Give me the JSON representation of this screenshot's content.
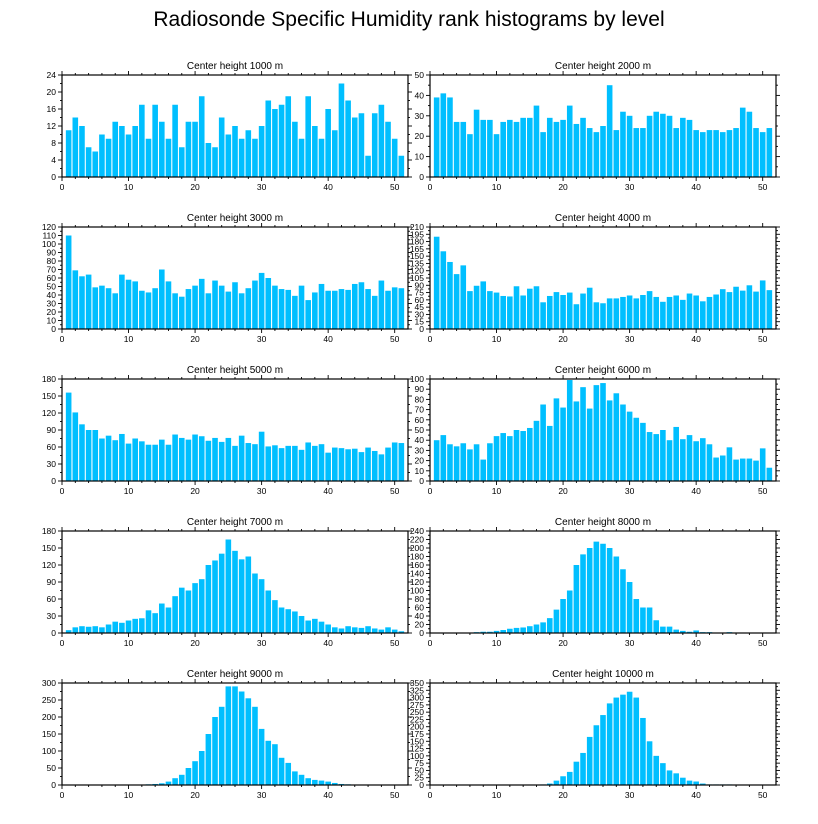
{
  "figure_title": "Radiosonde Specific Humidity rank histograms by level",
  "colors": {
    "bar": "#00bfff",
    "axis": "#000000",
    "background": "#ffffff"
  },
  "chart_data": [
    {
      "type": "bar",
      "title": "Center height 1000 m",
      "xlabel": "",
      "ylabel": "",
      "xlim": [
        0,
        52
      ],
      "ylim": [
        0,
        24
      ],
      "xticks": [
        0,
        10,
        20,
        30,
        40,
        50
      ],
      "yticks": [
        0,
        4,
        8,
        12,
        16,
        20,
        24
      ],
      "x": [
        1,
        2,
        3,
        4,
        5,
        6,
        7,
        8,
        9,
        10,
        11,
        12,
        13,
        14,
        15,
        16,
        17,
        18,
        19,
        20,
        21,
        22,
        23,
        24,
        25,
        26,
        27,
        28,
        29,
        30,
        31,
        32,
        33,
        34,
        35,
        36,
        37,
        38,
        39,
        40,
        41,
        42,
        43,
        44,
        45,
        46,
        47,
        48,
        49,
        50,
        51
      ],
      "values": [
        11,
        14,
        12,
        7,
        6,
        10,
        9,
        13,
        12,
        10,
        12,
        17,
        9,
        17,
        13,
        9,
        17,
        7,
        13,
        13,
        19,
        8,
        7,
        14,
        10,
        12,
        9,
        11,
        9,
        12,
        18,
        16,
        17,
        19,
        13,
        9,
        19,
        12,
        9,
        16,
        11,
        22,
        18,
        14,
        15,
        5,
        15,
        17,
        13,
        9,
        5
      ]
    },
    {
      "type": "bar",
      "title": "Center height 2000 m",
      "xlabel": "",
      "ylabel": "",
      "xlim": [
        0,
        52
      ],
      "ylim": [
        0,
        50
      ],
      "xticks": [
        0,
        10,
        20,
        30,
        40,
        50
      ],
      "yticks": [
        0,
        10,
        20,
        30,
        40,
        50
      ],
      "x": [
        1,
        2,
        3,
        4,
        5,
        6,
        7,
        8,
        9,
        10,
        11,
        12,
        13,
        14,
        15,
        16,
        17,
        18,
        19,
        20,
        21,
        22,
        23,
        24,
        25,
        26,
        27,
        28,
        29,
        30,
        31,
        32,
        33,
        34,
        35,
        36,
        37,
        38,
        39,
        40,
        41,
        42,
        43,
        44,
        45,
        46,
        47,
        48,
        49,
        50,
        51
      ],
      "values": [
        39,
        41,
        39,
        27,
        27,
        21,
        33,
        28,
        28,
        21,
        27,
        28,
        27,
        29,
        29,
        35,
        22,
        29,
        27,
        28,
        35,
        26,
        29,
        24,
        22,
        25,
        45,
        23,
        32,
        30,
        24,
        24,
        30,
        32,
        31,
        30,
        24,
        29,
        28,
        23,
        22,
        23,
        23,
        22,
        23,
        24,
        34,
        32,
        24,
        22,
        24
      ]
    },
    {
      "type": "bar",
      "title": "Center height 3000 m",
      "xlabel": "",
      "ylabel": "",
      "xlim": [
        0,
        52
      ],
      "ylim": [
        0,
        120
      ],
      "xticks": [
        0,
        10,
        20,
        30,
        40,
        50
      ],
      "yticks": [
        0,
        10,
        20,
        30,
        40,
        50,
        60,
        70,
        80,
        90,
        100,
        110,
        120
      ],
      "x": [
        1,
        2,
        3,
        4,
        5,
        6,
        7,
        8,
        9,
        10,
        11,
        12,
        13,
        14,
        15,
        16,
        17,
        18,
        19,
        20,
        21,
        22,
        23,
        24,
        25,
        26,
        27,
        28,
        29,
        30,
        31,
        32,
        33,
        34,
        35,
        36,
        37,
        38,
        39,
        40,
        41,
        42,
        43,
        44,
        45,
        46,
        47,
        48,
        49,
        50,
        51
      ],
      "values": [
        110,
        69,
        62,
        64,
        49,
        51,
        48,
        42,
        64,
        58,
        56,
        45,
        43,
        48,
        70,
        56,
        42,
        38,
        47,
        51,
        59,
        42,
        57,
        51,
        44,
        55,
        42,
        48,
        57,
        66,
        60,
        51,
        47,
        46,
        39,
        51,
        34,
        43,
        53,
        45,
        45,
        47,
        46,
        53,
        55,
        47,
        39,
        57,
        45,
        49,
        48
      ]
    },
    {
      "type": "bar",
      "title": "Center height 4000 m",
      "xlabel": "",
      "ylabel": "",
      "xlim": [
        0,
        52
      ],
      "ylim": [
        0,
        210
      ],
      "xticks": [
        0,
        10,
        20,
        30,
        40,
        50
      ],
      "yticks": [
        0,
        15,
        30,
        45,
        60,
        75,
        90,
        105,
        120,
        135,
        150,
        165,
        180,
        195,
        210
      ],
      "x": [
        1,
        2,
        3,
        4,
        5,
        6,
        7,
        8,
        9,
        10,
        11,
        12,
        13,
        14,
        15,
        16,
        17,
        18,
        19,
        20,
        21,
        22,
        23,
        24,
        25,
        26,
        27,
        28,
        29,
        30,
        31,
        32,
        33,
        34,
        35,
        36,
        37,
        38,
        39,
        40,
        41,
        42,
        43,
        44,
        45,
        46,
        47,
        48,
        49,
        50,
        51
      ],
      "values": [
        190,
        160,
        138,
        113,
        131,
        78,
        89,
        98,
        78,
        75,
        68,
        67,
        88,
        69,
        83,
        88,
        55,
        68,
        76,
        70,
        75,
        51,
        73,
        85,
        55,
        53,
        63,
        63,
        66,
        69,
        63,
        70,
        78,
        66,
        56,
        66,
        69,
        60,
        73,
        69,
        57,
        66,
        71,
        82,
        76,
        87,
        79,
        90,
        77,
        100,
        80
      ]
    },
    {
      "type": "bar",
      "title": "Center height 5000 m",
      "xlabel": "",
      "ylabel": "",
      "xlim": [
        0,
        52
      ],
      "ylim": [
        0,
        180
      ],
      "xticks": [
        0,
        10,
        20,
        30,
        40,
        50
      ],
      "yticks": [
        0,
        30,
        60,
        90,
        120,
        150,
        180
      ],
      "x": [
        1,
        2,
        3,
        4,
        5,
        6,
        7,
        8,
        9,
        10,
        11,
        12,
        13,
        14,
        15,
        16,
        17,
        18,
        19,
        20,
        21,
        22,
        23,
        24,
        25,
        26,
        27,
        28,
        29,
        30,
        31,
        32,
        33,
        34,
        35,
        36,
        37,
        38,
        39,
        40,
        41,
        42,
        43,
        44,
        45,
        46,
        47,
        48,
        49,
        50,
        51
      ],
      "values": [
        156,
        121,
        100,
        90,
        90,
        75,
        80,
        72,
        83,
        66,
        75,
        70,
        64,
        64,
        73,
        64,
        82,
        76,
        73,
        82,
        79,
        71,
        76,
        69,
        76,
        62,
        80,
        67,
        65,
        87,
        61,
        63,
        58,
        62,
        62,
        55,
        68,
        62,
        65,
        50,
        59,
        58,
        56,
        57,
        51,
        59,
        53,
        47,
        59,
        68,
        67
      ]
    },
    {
      "type": "bar",
      "title": "Center height 6000 m",
      "xlabel": "",
      "ylabel": "",
      "xlim": [
        0,
        52
      ],
      "ylim": [
        0,
        100
      ],
      "xticks": [
        0,
        10,
        20,
        30,
        40,
        50
      ],
      "yticks": [
        0,
        10,
        20,
        30,
        40,
        50,
        60,
        70,
        80,
        90,
        100
      ],
      "x": [
        1,
        2,
        3,
        4,
        5,
        6,
        7,
        8,
        9,
        10,
        11,
        12,
        13,
        14,
        15,
        16,
        17,
        18,
        19,
        20,
        21,
        22,
        23,
        24,
        25,
        26,
        27,
        28,
        29,
        30,
        31,
        32,
        33,
        34,
        35,
        36,
        37,
        38,
        39,
        40,
        41,
        42,
        43,
        44,
        45,
        46,
        47,
        48,
        49,
        50,
        51
      ],
      "values": [
        40,
        45,
        36,
        34,
        37,
        31,
        36,
        21,
        37,
        44,
        47,
        44,
        50,
        49,
        52,
        59,
        75,
        54,
        81,
        72,
        99,
        78,
        92,
        71,
        94,
        96,
        79,
        86,
        75,
        68,
        62,
        57,
        48,
        46,
        50,
        40,
        53,
        41,
        45,
        39,
        42,
        36,
        23,
        25,
        33,
        21,
        22,
        22,
        20,
        32,
        13
      ]
    },
    {
      "type": "bar",
      "title": "Center height 7000 m",
      "xlabel": "",
      "ylabel": "",
      "xlim": [
        0,
        52
      ],
      "ylim": [
        0,
        180
      ],
      "xticks": [
        0,
        10,
        20,
        30,
        40,
        50
      ],
      "yticks": [
        0,
        30,
        60,
        90,
        120,
        150,
        180
      ],
      "x": [
        1,
        2,
        3,
        4,
        5,
        6,
        7,
        8,
        9,
        10,
        11,
        12,
        13,
        14,
        15,
        16,
        17,
        18,
        19,
        20,
        21,
        22,
        23,
        24,
        25,
        26,
        27,
        28,
        29,
        30,
        31,
        32,
        33,
        34,
        35,
        36,
        37,
        38,
        39,
        40,
        41,
        42,
        43,
        44,
        45,
        46,
        47,
        48,
        49,
        50,
        51
      ],
      "values": [
        5,
        10,
        12,
        11,
        12,
        10,
        15,
        20,
        18,
        22,
        25,
        26,
        40,
        35,
        52,
        45,
        65,
        80,
        75,
        88,
        95,
        120,
        128,
        140,
        165,
        145,
        130,
        135,
        105,
        95,
        75,
        58,
        45,
        42,
        38,
        30,
        22,
        25,
        20,
        15,
        10,
        8,
        12,
        10,
        9,
        12,
        8,
        6,
        10,
        6,
        3
      ]
    },
    {
      "type": "bar",
      "title": "Center height 8000 m",
      "xlabel": "",
      "ylabel": "",
      "xlim": [
        0,
        52
      ],
      "ylim": [
        0,
        240
      ],
      "xticks": [
        0,
        10,
        20,
        30,
        40,
        50
      ],
      "yticks": [
        0,
        20,
        40,
        60,
        80,
        100,
        120,
        140,
        160,
        180,
        200,
        220,
        240
      ],
      "x": [
        1,
        2,
        3,
        4,
        5,
        6,
        7,
        8,
        9,
        10,
        11,
        12,
        13,
        14,
        15,
        16,
        17,
        18,
        19,
        20,
        21,
        22,
        23,
        24,
        25,
        26,
        27,
        28,
        29,
        30,
        31,
        32,
        33,
        34,
        35,
        36,
        37,
        38,
        39,
        40,
        41,
        42,
        43,
        44,
        45,
        46,
        47,
        48,
        49,
        50,
        51
      ],
      "values": [
        0,
        0,
        0,
        0,
        1,
        1,
        2,
        3,
        3,
        5,
        7,
        10,
        12,
        13,
        16,
        20,
        25,
        35,
        55,
        80,
        100,
        160,
        185,
        200,
        215,
        210,
        200,
        180,
        150,
        120,
        80,
        60,
        60,
        30,
        15,
        15,
        8,
        5,
        3,
        6,
        2,
        2,
        1,
        1,
        2,
        1,
        0,
        0,
        0,
        0,
        0
      ]
    },
    {
      "type": "bar",
      "title": "Center height 9000 m",
      "xlabel": "",
      "ylabel": "",
      "xlim": [
        0,
        52
      ],
      "ylim": [
        0,
        300
      ],
      "xticks": [
        0,
        10,
        20,
        30,
        40,
        50
      ],
      "yticks": [
        0,
        50,
        100,
        150,
        200,
        250,
        300
      ],
      "x": [
        1,
        2,
        3,
        4,
        5,
        6,
        7,
        8,
        9,
        10,
        11,
        12,
        13,
        14,
        15,
        16,
        17,
        18,
        19,
        20,
        21,
        22,
        23,
        24,
        25,
        26,
        27,
        28,
        29,
        30,
        31,
        32,
        33,
        34,
        35,
        36,
        37,
        38,
        39,
        40,
        41,
        42,
        43,
        44,
        45,
        46,
        47,
        48,
        49,
        50,
        51
      ],
      "values": [
        0,
        0,
        0,
        0,
        0,
        0,
        0,
        0,
        0,
        0,
        0,
        1,
        2,
        3,
        5,
        10,
        20,
        30,
        50,
        70,
        100,
        150,
        200,
        230,
        290,
        290,
        275,
        255,
        230,
        165,
        130,
        120,
        80,
        65,
        40,
        30,
        20,
        15,
        13,
        10,
        6,
        3,
        2,
        1,
        1,
        0,
        0,
        0,
        0,
        0,
        0
      ]
    },
    {
      "type": "bar",
      "title": "Center height 10000 m",
      "xlabel": "",
      "ylabel": "",
      "xlim": [
        0,
        52
      ],
      "ylim": [
        0,
        350
      ],
      "xticks": [
        0,
        10,
        20,
        30,
        40,
        50
      ],
      "yticks": [
        0,
        25,
        50,
        75,
        100,
        125,
        150,
        175,
        200,
        225,
        250,
        275,
        300,
        325,
        350
      ],
      "x": [
        1,
        2,
        3,
        4,
        5,
        6,
        7,
        8,
        9,
        10,
        11,
        12,
        13,
        14,
        15,
        16,
        17,
        18,
        19,
        20,
        21,
        22,
        23,
        24,
        25,
        26,
        27,
        28,
        29,
        30,
        31,
        32,
        33,
        34,
        35,
        36,
        37,
        38,
        39,
        40,
        41,
        42,
        43,
        44,
        45,
        46,
        47,
        48,
        49,
        50,
        51
      ],
      "values": [
        0,
        0,
        0,
        0,
        0,
        0,
        0,
        0,
        0,
        0,
        0,
        0,
        0,
        0,
        0,
        1,
        2,
        5,
        15,
        30,
        45,
        80,
        110,
        165,
        205,
        240,
        280,
        300,
        310,
        320,
        300,
        230,
        150,
        100,
        75,
        50,
        40,
        25,
        15,
        12,
        5,
        2,
        2,
        2,
        2,
        1,
        1,
        0,
        0,
        0,
        0
      ]
    }
  ]
}
